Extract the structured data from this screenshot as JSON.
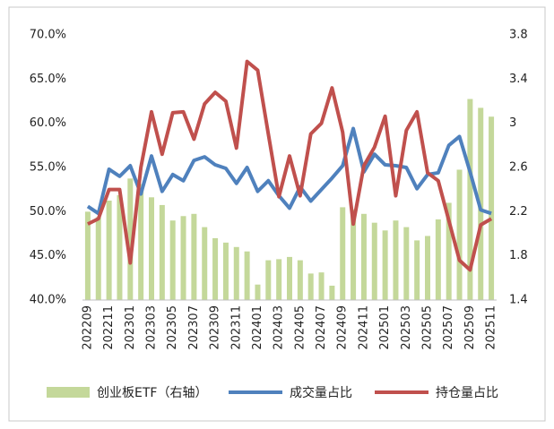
{
  "chart_data": {
    "type": "combo",
    "categories": [
      "202209",
      null,
      "202211",
      null,
      "202301",
      null,
      "202303",
      null,
      "202305",
      null,
      "202307",
      null,
      "202309",
      null,
      "202311",
      null,
      "202401",
      null,
      "202403",
      null,
      "202405",
      null,
      "202407",
      null,
      "202409",
      null,
      "202411",
      null,
      "202501",
      null,
      "202503",
      null,
      "202505",
      null,
      "202507",
      null,
      "202509",
      null,
      "202511"
    ],
    "series": [
      {
        "name": "创业板ETF（右轴）",
        "type": "bar",
        "axis": "y2",
        "color": "#c4d89a",
        "values": [
          2.2,
          2.15,
          2.3,
          2.35,
          2.5,
          2.45,
          2.33,
          2.26,
          2.12,
          2.16,
          2.18,
          2.06,
          1.96,
          1.92,
          1.88,
          1.84,
          1.54,
          1.76,
          1.77,
          1.79,
          1.76,
          1.64,
          1.65,
          1.53,
          2.24,
          2.22,
          2.18,
          2.1,
          2.03,
          2.12,
          2.06,
          1.94,
          1.98,
          2.13,
          2.28,
          2.58,
          3.22,
          3.14,
          3.06
        ]
      },
      {
        "name": "成交量占比",
        "type": "line",
        "color": "#4f81bd",
        "values": [
          50.6,
          49.8,
          54.8,
          54.0,
          55.2,
          52.0,
          56.3,
          52.3,
          54.2,
          53.5,
          55.8,
          56.2,
          55.3,
          54.9,
          53.2,
          55.0,
          52.3,
          53.5,
          51.8,
          50.4,
          52.8,
          51.2,
          52.5,
          53.8,
          55.2,
          59.4,
          54.5,
          56.5,
          55.3,
          55.2,
          55.0,
          52.6,
          54.2,
          54.4,
          57.5,
          58.5,
          54.5,
          50.2,
          49.8
        ]
      },
      {
        "name": "持仓量占比",
        "type": "line",
        "color": "#c0504d",
        "values": [
          48.6,
          49.2,
          52.5,
          52.5,
          44.2,
          55.0,
          61.3,
          56.5,
          61.2,
          61.3,
          58.2,
          62.2,
          63.5,
          62.5,
          57.2,
          67.0,
          66.0,
          58.8,
          51.7,
          56.3,
          51.8,
          58.8,
          60.0,
          64.0,
          59.0,
          48.6,
          55.2,
          57.3,
          60.8,
          51.8,
          59.2,
          61.3,
          54.4,
          53.5,
          49.0,
          44.5,
          43.4,
          48.5,
          49.2
        ]
      }
    ],
    "ylim": [
      40,
      70
    ],
    "yticks": [
      {
        "value": 40,
        "label": "40.0%"
      },
      {
        "value": 45,
        "label": "45.0%"
      },
      {
        "value": 50,
        "label": "50.0%"
      },
      {
        "value": 55,
        "label": "55.0%"
      },
      {
        "value": 60,
        "label": "60.0%"
      },
      {
        "value": 65,
        "label": "65.0%"
      },
      {
        "value": 70,
        "label": "70.0%"
      }
    ],
    "y2lim": [
      1.4,
      3.8
    ],
    "y2ticks": [
      1.4,
      1.8,
      2.2,
      2.6,
      3,
      3.4,
      3.8
    ],
    "legend": "bottom"
  }
}
